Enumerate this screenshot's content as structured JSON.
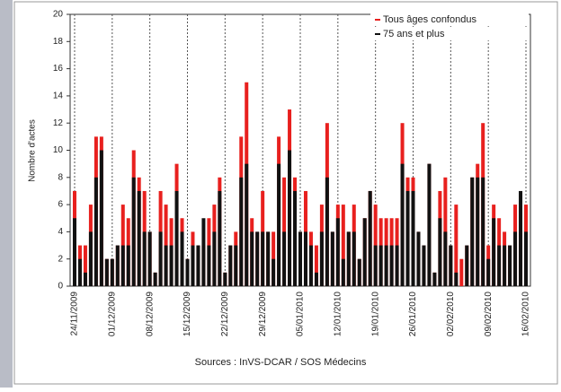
{
  "chart_data": {
    "type": "bar",
    "y_label": "Nombre d'actes",
    "source": "Sources : InVS-DCAR / SOS Médecins",
    "categories": [
      "24/11/2009",
      null,
      null,
      null,
      null,
      null,
      null,
      "01/12/2009",
      null,
      null,
      null,
      null,
      null,
      null,
      "08/12/2009",
      null,
      null,
      null,
      null,
      null,
      null,
      "15/12/2009",
      null,
      null,
      null,
      null,
      null,
      null,
      "22/12/2009",
      null,
      null,
      null,
      null,
      null,
      null,
      "29/12/2009",
      null,
      null,
      null,
      null,
      null,
      null,
      "05/01/2010",
      null,
      null,
      null,
      null,
      null,
      null,
      "12/01/2010",
      null,
      null,
      null,
      null,
      null,
      null,
      "19/01/2010",
      null,
      null,
      null,
      null,
      null,
      null,
      "26/01/2010",
      null,
      null,
      null,
      null,
      null,
      null,
      "02/02/2010",
      null,
      null,
      null,
      null,
      null,
      null,
      "09/02/2010",
      null,
      null,
      null,
      null,
      null,
      null,
      "16/02/2010"
    ],
    "series": [
      {
        "name": "Tous âges confondus",
        "color": "#e8201e",
        "values": [
          7,
          3,
          3,
          6,
          11,
          11,
          2,
          2,
          3,
          6,
          5,
          10,
          8,
          7,
          4,
          1,
          7,
          6,
          5,
          9,
          5,
          2,
          4,
          3,
          3,
          5,
          6,
          8,
          1,
          3,
          4,
          11,
          15,
          5,
          4,
          7,
          4,
          4,
          11,
          8,
          13,
          8,
          4,
          7,
          4,
          3,
          6,
          12,
          4,
          6,
          6,
          4,
          6,
          2,
          5,
          7,
          6,
          5,
          5,
          5,
          5,
          12,
          8,
          8,
          4,
          3,
          9,
          1,
          7,
          8,
          3,
          6,
          2,
          3,
          8,
          9,
          12,
          3,
          6,
          5,
          4,
          3,
          6,
          4,
          6
        ]
      },
      {
        "name": "75 ans et plus",
        "color": "#111111",
        "values": [
          5,
          2,
          1,
          4,
          8,
          10,
          2,
          2,
          3,
          3,
          3,
          8,
          7,
          4,
          4,
          1,
          4,
          3,
          3,
          7,
          4,
          2,
          3,
          3,
          5,
          3,
          4,
          7,
          1,
          3,
          3,
          8,
          9,
          4,
          4,
          4,
          4,
          2,
          9,
          4,
          10,
          7,
          4,
          4,
          3,
          1,
          4,
          8,
          4,
          5,
          2,
          4,
          4,
          2,
          5,
          7,
          3,
          3,
          3,
          3,
          3,
          9,
          7,
          7,
          4,
          3,
          9,
          1,
          5,
          4,
          3,
          1,
          0,
          3,
          8,
          8,
          8,
          2,
          5,
          3,
          3,
          3,
          4,
          7,
          4
        ]
      }
    ],
    "ylim": [
      0,
      20
    ],
    "yticks": [
      0,
      2,
      4,
      6,
      8,
      10,
      12,
      14,
      16,
      18,
      20
    ]
  }
}
